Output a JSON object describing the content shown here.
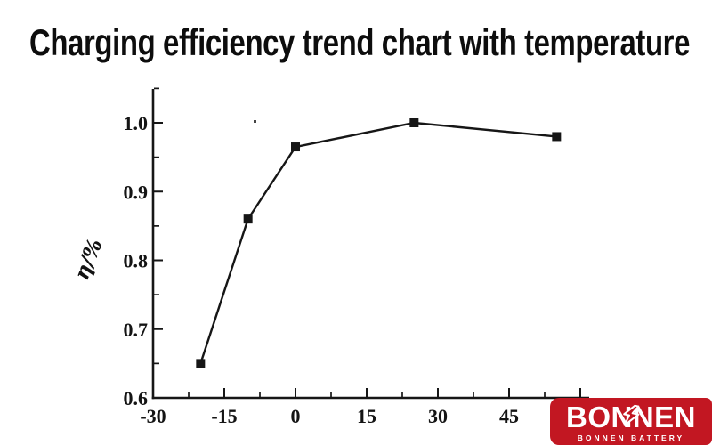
{
  "title": {
    "text": "Charging efficiency trend chart with temperature"
  },
  "chart_data": {
    "type": "line",
    "title": "Charging efficiency trend chart with temperature",
    "xlabel": "",
    "ylabel": "η/%",
    "series": [
      {
        "name": "charging-efficiency-vs-temperature",
        "x": [
          -20,
          -10,
          0,
          25,
          55
        ],
        "y": [
          0.65,
          0.86,
          0.965,
          1.0,
          0.98
        ]
      }
    ],
    "xlim": [
      -30,
      62
    ],
    "ylim": [
      0.6,
      1.05
    ],
    "x_major_ticks": [
      -30,
      -15,
      0,
      15,
      30,
      45,
      60
    ],
    "x_tick_labels": [
      "-30",
      "-15",
      "0",
      "15",
      "30",
      "45"
    ],
    "x_minor_ticks": [
      -22.5,
      -7.5,
      7.5,
      22.5,
      37.5,
      52.5
    ],
    "y_major_ticks": [
      0.6,
      0.7,
      0.8,
      0.9,
      1.0
    ],
    "y_tick_labels": [
      "0.6",
      "0.7",
      "0.8",
      "0.9",
      "1.0"
    ],
    "y_minor_ticks": [
      0.65,
      0.75,
      0.85,
      0.95,
      1.05
    ],
    "grid": false,
    "legend": null,
    "marker": "square",
    "marker_size": 10,
    "line_color": "#161616",
    "axis_color": "#161616"
  },
  "logo": {
    "name": "BONNEN",
    "subtitle": "BONNEN BATTERY",
    "bg_color": "#c21722",
    "text_color": "#ffffff",
    "icon": "lightning-bolt-icon"
  }
}
